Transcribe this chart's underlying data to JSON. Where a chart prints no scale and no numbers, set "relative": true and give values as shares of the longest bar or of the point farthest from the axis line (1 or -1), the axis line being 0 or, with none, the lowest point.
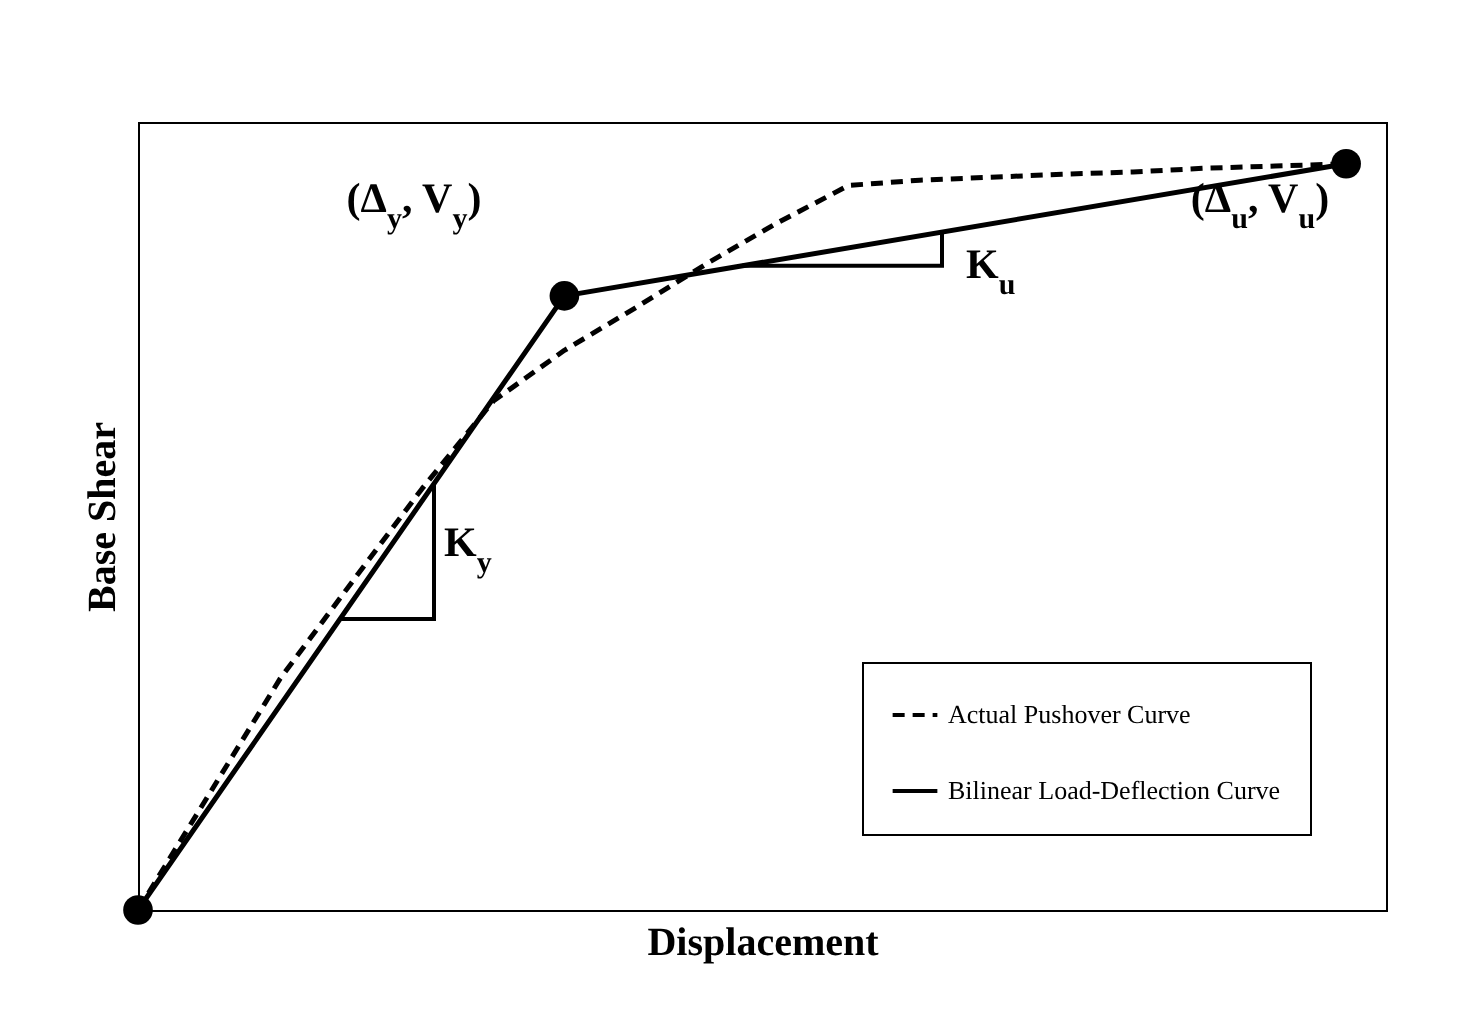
{
  "chart_data": {
    "type": "line",
    "relative": true,
    "xlabel": "Displacement",
    "ylabel": "Base Shear",
    "legend": "bottom right",
    "categories": [
      null,
      null,
      null,
      null,
      null,
      null,
      null,
      null,
      null,
      null,
      null,
      null,
      null,
      null,
      null,
      null,
      null,
      null
    ],
    "series": [
      {
        "name": "Actual Pushover Curve",
        "color": "#000000",
        "line_style": "dashed",
        "marker": "none",
        "values": [
          0,
          0.155,
          0.31,
          0.438,
          0.565,
          0.682,
          0.75,
          0.807,
          0.866,
          0.921,
          0.971,
          0.978,
          0.982,
          0.986,
          0.989,
          0.994,
          0.997,
          1.0
        ]
      },
      {
        "name": "Bilinear Load-Deflection Curve",
        "color": "#000000",
        "line_style": "solid",
        "marker": "circle",
        "values": [
          0,
          null,
          null,
          null,
          null,
          null,
          0.823,
          null,
          null,
          null,
          null,
          null,
          null,
          null,
          null,
          null,
          null,
          1
        ]
      }
    ],
    "annotations": [
      "(Δ$_{y}$, V$_{y}$)",
      "K$_{y}$",
      "K$_{u}$",
      "(Δ$_{u}$, V$_{u}$)"
    ]
  }
}
